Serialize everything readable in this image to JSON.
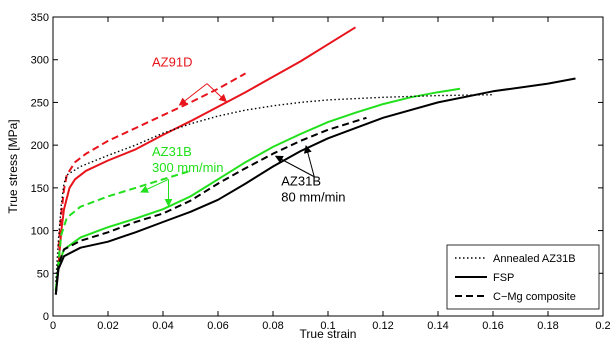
{
  "chart_data": {
    "type": "line",
    "xlabel": "True strain",
    "ylabel": "True stress [MPa]",
    "xlim": [
      0,
      0.2
    ],
    "ylim": [
      0,
      350
    ],
    "xticks": [
      {
        "value": 0,
        "label": "0"
      },
      {
        "value": 0.02,
        "label": "0.02"
      },
      {
        "value": 0.04,
        "label": "0.04"
      },
      {
        "value": 0.06,
        "label": "0.06"
      },
      {
        "value": 0.08,
        "label": "0.08"
      },
      {
        "value": 0.1,
        "label": "0.1"
      },
      {
        "value": 0.12,
        "label": "0.12"
      },
      {
        "value": 0.14,
        "label": "0.14"
      },
      {
        "value": 0.16,
        "label": "0.16"
      },
      {
        "value": 0.18,
        "label": "0.18"
      },
      {
        "value": 0.2,
        "label": "0.2"
      }
    ],
    "yticks": [
      {
        "value": 0,
        "label": "0"
      },
      {
        "value": 50,
        "label": "50"
      },
      {
        "value": 100,
        "label": "100"
      },
      {
        "value": 150,
        "label": "150"
      },
      {
        "value": 200,
        "label": "200"
      },
      {
        "value": 250,
        "label": "250"
      },
      {
        "value": 300,
        "label": "300"
      },
      {
        "value": 350,
        "label": "350"
      }
    ],
    "grid": false,
    "legend": {
      "position": "bottom-right",
      "entries": [
        {
          "label": "Annealed AZ31B",
          "dash": "dotted"
        },
        {
          "label": "FSP",
          "dash": "solid"
        },
        {
          "label": "C−Mg composite",
          "dash": "dashed"
        }
      ]
    },
    "colors": {
      "AZ91D": "#e8141c",
      "AZ31B_300": "#22e01c",
      "AZ31B_80": "#000000"
    },
    "series": [
      {
        "group": "AZ91D",
        "dash": "solid",
        "points": [
          [
            0.002,
            60
          ],
          [
            0.003,
            100
          ],
          [
            0.004,
            125
          ],
          [
            0.006,
            150
          ],
          [
            0.008,
            160
          ],
          [
            0.012,
            170
          ],
          [
            0.02,
            182
          ],
          [
            0.03,
            195
          ],
          [
            0.04,
            212
          ],
          [
            0.05,
            228
          ],
          [
            0.06,
            245
          ],
          [
            0.07,
            262
          ],
          [
            0.08,
            280
          ],
          [
            0.09,
            298
          ],
          [
            0.1,
            318
          ],
          [
            0.11,
            338
          ]
        ]
      },
      {
        "group": "AZ91D",
        "dash": "dashed",
        "points": [
          [
            0.002,
            80
          ],
          [
            0.003,
            120
          ],
          [
            0.004,
            148
          ],
          [
            0.005,
            165
          ],
          [
            0.008,
            180
          ],
          [
            0.012,
            190
          ],
          [
            0.02,
            205
          ],
          [
            0.03,
            220
          ],
          [
            0.04,
            235
          ],
          [
            0.05,
            250
          ],
          [
            0.06,
            266
          ],
          [
            0.07,
            284
          ]
        ]
      },
      {
        "group": "AZ31B_300",
        "dash": "solid",
        "points": [
          [
            0.001,
            30
          ],
          [
            0.002,
            60
          ],
          [
            0.004,
            78
          ],
          [
            0.01,
            92
          ],
          [
            0.02,
            104
          ],
          [
            0.03,
            114
          ],
          [
            0.04,
            125
          ],
          [
            0.05,
            140
          ],
          [
            0.06,
            160
          ],
          [
            0.07,
            180
          ],
          [
            0.08,
            198
          ],
          [
            0.09,
            213
          ],
          [
            0.1,
            227
          ],
          [
            0.11,
            238
          ],
          [
            0.12,
            248
          ],
          [
            0.13,
            256
          ],
          [
            0.14,
            262
          ],
          [
            0.148,
            266
          ]
        ]
      },
      {
        "group": "AZ31B_300",
        "dash": "dashed",
        "points": [
          [
            0.001,
            30
          ],
          [
            0.002,
            65
          ],
          [
            0.003,
            95
          ],
          [
            0.005,
            115
          ],
          [
            0.01,
            128
          ],
          [
            0.02,
            140
          ],
          [
            0.03,
            150
          ],
          [
            0.04,
            160
          ],
          [
            0.05,
            170
          ]
        ]
      },
      {
        "group": "AZ31B_80",
        "dash": "solid",
        "points": [
          [
            0.001,
            25
          ],
          [
            0.002,
            55
          ],
          [
            0.004,
            70
          ],
          [
            0.01,
            80
          ],
          [
            0.02,
            87
          ],
          [
            0.03,
            98
          ],
          [
            0.04,
            110
          ],
          [
            0.05,
            122
          ],
          [
            0.06,
            136
          ],
          [
            0.07,
            155
          ],
          [
            0.08,
            175
          ],
          [
            0.09,
            193
          ],
          [
            0.1,
            208
          ],
          [
            0.12,
            232
          ],
          [
            0.14,
            250
          ],
          [
            0.16,
            263
          ],
          [
            0.18,
            272
          ],
          [
            0.19,
            278
          ]
        ]
      },
      {
        "group": "AZ31B_80",
        "dash": "dashed",
        "points": [
          [
            0.001,
            25
          ],
          [
            0.002,
            60
          ],
          [
            0.004,
            78
          ],
          [
            0.01,
            88
          ],
          [
            0.02,
            98
          ],
          [
            0.03,
            110
          ],
          [
            0.04,
            120
          ],
          [
            0.05,
            135
          ],
          [
            0.06,
            155
          ],
          [
            0.07,
            173
          ],
          [
            0.08,
            190
          ],
          [
            0.09,
            205
          ],
          [
            0.1,
            218
          ],
          [
            0.11,
            228
          ],
          [
            0.114,
            232
          ]
        ]
      },
      {
        "group": "AZ31B_80",
        "dash": "dotted",
        "points": [
          [
            0.001,
            40
          ],
          [
            0.002,
            90
          ],
          [
            0.003,
            130
          ],
          [
            0.004,
            155
          ],
          [
            0.005,
            165
          ],
          [
            0.01,
            175
          ],
          [
            0.02,
            188
          ],
          [
            0.03,
            200
          ],
          [
            0.04,
            214
          ],
          [
            0.05,
            225
          ],
          [
            0.06,
            234
          ],
          [
            0.07,
            241
          ],
          [
            0.08,
            246
          ],
          [
            0.09,
            250
          ],
          [
            0.1,
            253
          ],
          [
            0.12,
            256
          ],
          [
            0.14,
            258
          ],
          [
            0.16,
            259
          ]
        ]
      }
    ],
    "annotations": [
      {
        "id": "az91d",
        "lines": [
          "AZ91D"
        ],
        "color": "#e8141c",
        "x": 0.036,
        "y": 292,
        "anchor": "start"
      },
      {
        "id": "az31b300",
        "lines": [
          "AZ31B",
          "300 mm/min"
        ],
        "color": "#22e01c",
        "x": 0.036,
        "y": 187,
        "anchor": "start"
      },
      {
        "id": "az31b80",
        "lines": [
          "AZ31B",
          "80 mm/min"
        ],
        "color": "#000000",
        "x": 0.083,
        "y": 153,
        "anchor": "start"
      }
    ],
    "arrows": [
      {
        "group": "AZ91D",
        "from": [
          0.056,
          272
        ],
        "to": [
          0.046,
          247
        ]
      },
      {
        "group": "AZ91D",
        "from": [
          0.056,
          272
        ],
        "to": [
          0.063,
          251
        ]
      },
      {
        "group": "AZ31B_300",
        "from": [
          0.042,
          160
        ],
        "to": [
          0.032,
          145
        ]
      },
      {
        "group": "AZ31B_300",
        "from": [
          0.042,
          160
        ],
        "to": [
          0.042,
          129
        ]
      },
      {
        "group": "AZ31B_80",
        "from": [
          0.095,
          163
        ],
        "to": [
          0.081,
          187
        ]
      },
      {
        "group": "AZ31B_80",
        "from": [
          0.095,
          163
        ],
        "to": [
          0.092,
          199
        ]
      }
    ]
  }
}
